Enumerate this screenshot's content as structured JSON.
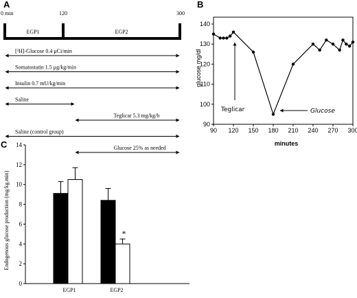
{
  "panel_a": {
    "letter": "A",
    "time_labels": [
      "0 min",
      "120",
      "300"
    ],
    "periods": [
      "EGP1",
      "EGP2"
    ],
    "protocol_rows": [
      {
        "label": "[³H]-Glucose 0.4 μCi/min",
        "from": 0,
        "to": 300
      },
      {
        "label": "Somatostatin 1.5 μg/kg/min",
        "from": 0,
        "to": 300
      },
      {
        "label": "Insulin 0.7 mU/kg/min",
        "from": 0,
        "to": 300
      },
      {
        "label": "Saline",
        "from": 0,
        "to": 120
      },
      {
        "label": "Teglicar 5.3 mg/kg/h",
        "from": 120,
        "to": 300
      },
      {
        "label": "Saline (control group)",
        "from": 0,
        "to": 300
      },
      {
        "label": "Glucose 25% as needed",
        "from": 120,
        "to": 300
      }
    ]
  },
  "panel_b": {
    "letter": "B",
    "annotations": {
      "teglicar": "Teglicar",
      "glucose": "Glucose"
    }
  },
  "panel_c": {
    "letter": "C",
    "significance_marker": "*"
  },
  "chart_data": [
    {
      "type": "line",
      "panel": "B",
      "xlabel": "minutes",
      "ylabel": "glucose mg/dl",
      "xlim": [
        90,
        300
      ],
      "ylim": [
        90,
        140
      ],
      "xticks": [
        90,
        120,
        150,
        180,
        210,
        240,
        270,
        300
      ],
      "yticks": [
        90,
        100,
        110,
        120,
        130,
        140
      ],
      "x": [
        90,
        100,
        105,
        110,
        115,
        120,
        150,
        180,
        210,
        240,
        250,
        260,
        270,
        280,
        285,
        290,
        295,
        300
      ],
      "y": [
        135,
        133,
        133,
        133,
        134,
        136,
        126,
        95,
        120,
        130,
        127,
        132,
        130,
        127,
        132,
        130,
        129,
        131
      ],
      "grid": false,
      "color": "#000000"
    },
    {
      "type": "bar",
      "panel": "C",
      "categories": [
        "EGP1",
        "EGP2"
      ],
      "ylabel": "Endogenous glucose production (mg/kg.min)",
      "ylim": [
        0,
        14
      ],
      "yticks": [
        0,
        2,
        4,
        6,
        8,
        10,
        12,
        14
      ],
      "series": [
        {
          "values": [
            9.1,
            8.4
          ],
          "errors": [
            1.2,
            1.2
          ],
          "color": "#000000"
        },
        {
          "values": [
            10.5,
            4.0
          ],
          "errors": [
            1.2,
            0.5
          ],
          "color": "#ffffff"
        }
      ]
    }
  ]
}
